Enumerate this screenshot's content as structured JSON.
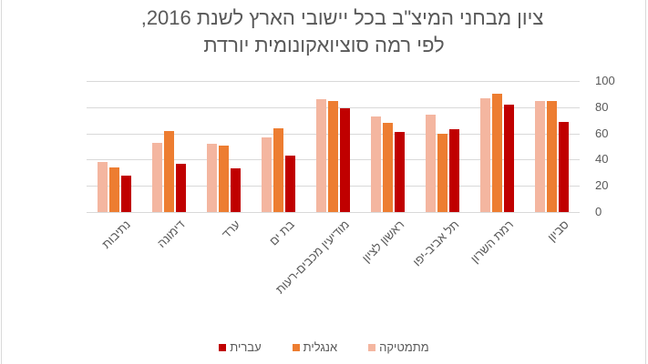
{
  "chart_data": {
    "type": "bar",
    "title": "ציון מבחני המיצ\"ב בכל יישובי הארץ לשנת 2016, לפי רמה סוציואקונומית יורדת",
    "title_lines": [
      "ציון מבחני המיצ\"ב בכל יישובי  הארץ לשנת 2016,",
      "לפי רמה סוציואקונומית  יורדת"
    ],
    "xlabel": "",
    "ylabel": "",
    "ylim": [
      0,
      100
    ],
    "yticks": [
      "100",
      "80",
      "60",
      "40",
      "20",
      "0"
    ],
    "grid": true,
    "legend_position": "bottom",
    "categories": [
      "נתיבות",
      "דימונה",
      "ערד",
      "בת ים",
      "מודיעין מכבים-רעות",
      "ראשון לציון",
      "תל אביב-יפו",
      "רמת השרון",
      "סביון"
    ],
    "series": [
      {
        "name": "מתמטיקה",
        "color": "#F4B6A0",
        "values": [
          38,
          53,
          52,
          57,
          86,
          73,
          74,
          87,
          85
        ]
      },
      {
        "name": "אנגלית",
        "color": "#ED7D31",
        "values": [
          34,
          62,
          51,
          64,
          85,
          68,
          60,
          90,
          85
        ]
      },
      {
        "name": "עברית",
        "color": "#C00000",
        "values": [
          28,
          37,
          33,
          43,
          79,
          61,
          63,
          82,
          69
        ]
      }
    ]
  }
}
